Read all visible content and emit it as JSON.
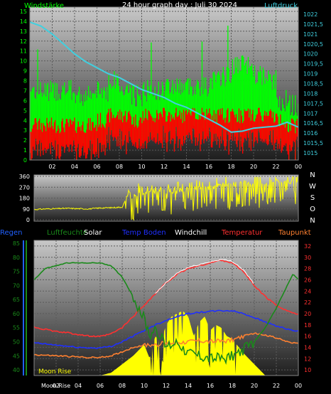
{
  "colors": {
    "wind_gust": "#00ff00",
    "wind_avg": "#ff0000",
    "pressure": "#40d0e0",
    "direction": "#ffff00",
    "rain": "#2060ff",
    "humidity": "#1a8a1a",
    "solar": "#ffff00",
    "soil_temp": "#1f2fff",
    "windchill": "#ffffff",
    "temperature": "#ff3030",
    "dewpoint": "#ff8030",
    "panel_top": "#bdbdbd",
    "panel_bottom": "#2a2a2a"
  },
  "chart_data": [
    {
      "type": "bar",
      "title": "24 hour graph day : Juli 30 2024",
      "left_axis_label": "Windstärke",
      "right_axis_label": "Luftdruck",
      "x_ticks": [
        "02",
        "04",
        "06",
        "08",
        "10",
        "12",
        "14",
        "16",
        "18",
        "20",
        "22",
        "00"
      ],
      "y_ticks_left": [
        "0",
        "1",
        "2",
        "3",
        "4",
        "5",
        "6",
        "7",
        "8",
        "9",
        "10",
        "11",
        "12",
        "13",
        "14",
        "15"
      ],
      "y_ticks_right": [
        "1015",
        "1015,5",
        "1016",
        "1016,5",
        "1017",
        "1017,5",
        "1018",
        "1018,5",
        "1019",
        "1019,5",
        "1020",
        "1020,5",
        "1021",
        "1021,5",
        "1022"
      ],
      "ylim_left": [
        0,
        15
      ],
      "ylim_right": [
        1015,
        1022
      ],
      "xlim_hours": [
        0,
        24
      ],
      "series": [
        {
          "key": "gust",
          "color": "wind_gust",
          "hourly": [
            7,
            7,
            7,
            7,
            6.5,
            6.5,
            7,
            8,
            7,
            6.5,
            7,
            7,
            7.5,
            7.5,
            7.5,
            7.5,
            8,
            8.5,
            9.5,
            9.5,
            8.5,
            8,
            6,
            5.5
          ]
        },
        {
          "key": "average",
          "color": "wind_avg",
          "hourly": [
            3.5,
            3.5,
            3.5,
            3.5,
            3.5,
            3.5,
            4,
            4.5,
            4.5,
            4,
            4.5,
            4.5,
            4.5,
            4.5,
            4.5,
            4.5,
            4.5,
            4.5,
            4.5,
            4.5,
            4.5,
            4.5,
            4,
            3.5
          ]
        },
        {
          "key": "pressure",
          "color": "pressure",
          "axis": "right",
          "x": [
            0,
            1,
            2,
            3,
            4,
            5,
            6,
            7,
            8,
            9,
            10,
            11,
            12,
            13,
            14,
            15,
            16,
            17,
            18,
            19,
            20,
            21,
            22,
            23,
            24
          ],
          "values": [
            1021.6,
            1021.4,
            1021.0,
            1020.5,
            1020.0,
            1019.6,
            1019.3,
            1019.0,
            1018.8,
            1018.5,
            1018.2,
            1018.0,
            1017.8,
            1017.5,
            1017.3,
            1017.0,
            1016.7,
            1016.4,
            1016.05,
            1016.1,
            1016.25,
            1016.3,
            1016.35,
            1016.55,
            1016.3
          ]
        }
      ]
    },
    {
      "type": "scatter",
      "ylim": [
        0,
        360
      ],
      "y_ticks": [
        "0",
        "90",
        "180",
        "270",
        "360"
      ],
      "compass_labels": [
        "N",
        "W",
        "S",
        "O",
        "N"
      ],
      "color": "direction",
      "x": [
        0,
        1,
        2,
        3,
        4,
        5,
        6,
        7,
        8,
        8.5,
        9,
        9.5,
        10,
        10.5,
        11,
        11.5,
        12,
        12.5,
        13,
        13.5,
        14,
        14.5,
        15,
        15.5,
        16,
        16.5,
        17,
        17.5,
        18,
        18.5,
        19,
        19.5,
        20,
        20.5,
        21,
        21.5,
        22,
        22.5,
        23,
        23.5,
        24
      ],
      "values": [
        85,
        90,
        92,
        95,
        92,
        90,
        98,
        100,
        105,
        200,
        150,
        240,
        210,
        250,
        230,
        260,
        235,
        240,
        230,
        255,
        250,
        260,
        255,
        270,
        265,
        275,
        290,
        300,
        285,
        300,
        310,
        300,
        295,
        305,
        300,
        310,
        315,
        320,
        310,
        320,
        300
      ]
    },
    {
      "type": "line",
      "legend": [
        "Regen",
        "Luftfeuchte",
        "Solar",
        "Temp Boden",
        "Windchill",
        "Temperatur",
        "Taupunkt"
      ],
      "x_ticks": [
        "02",
        "04",
        "06",
        "08",
        "10",
        "12",
        "14",
        "16",
        "18",
        "20",
        "22",
        "00"
      ],
      "y_ticks_left": [
        "40",
        "45",
        "50",
        "55",
        "60",
        "65",
        "70",
        "75",
        "80",
        "85"
      ],
      "y_ticks_right": [
        "10",
        "12",
        "14",
        "16",
        "18",
        "20",
        "22",
        "24",
        "26",
        "28",
        "30",
        "32"
      ],
      "ylim_left": [
        38,
        86
      ],
      "ylim_right": [
        9,
        33
      ],
      "xlim_hours": [
        0,
        24
      ],
      "annotations": [
        "Moon Rise",
        "Moon Rise"
      ],
      "moon_rise_hour": 1.2,
      "series": [
        {
          "key": "humidity",
          "color": "humidity",
          "axis": "left",
          "x": [
            0,
            0.5,
            1,
            2,
            3,
            4,
            5,
            6,
            7,
            8,
            9,
            10,
            10.5,
            11,
            12,
            13,
            14,
            15,
            16,
            17,
            18,
            19,
            20,
            21,
            22,
            23,
            23.5,
            24
          ],
          "values": [
            72,
            74,
            76,
            77,
            78,
            78,
            78,
            78,
            77,
            73,
            66,
            58,
            52,
            55,
            48,
            50,
            46,
            45,
            44,
            44,
            45,
            47,
            50,
            55,
            62,
            70,
            74,
            72
          ]
        },
        {
          "key": "temperature",
          "color": "temperature",
          "axis": "right",
          "x": [
            0,
            1,
            2,
            3,
            4,
            5,
            6,
            7,
            8,
            9,
            10,
            11,
            12,
            13,
            14,
            15,
            16,
            17,
            18,
            19,
            20,
            21,
            22,
            23,
            24
          ],
          "values": [
            17.6,
            17.2,
            16.8,
            16.6,
            16.3,
            16.0,
            15.9,
            16.4,
            17.5,
            19.5,
            21.5,
            23.5,
            25.5,
            27.0,
            28.0,
            28.5,
            29.0,
            29.5,
            29.0,
            27.5,
            25.0,
            23.0,
            21.5,
            20.5,
            19.8
          ]
        },
        {
          "key": "windchill",
          "color": "windchill",
          "axis": "right",
          "x": [
            11,
            12,
            13,
            14,
            15,
            16,
            17,
            18,
            19,
            20
          ],
          "values": [
            23.5,
            25.5,
            27.2,
            28.2,
            28.7,
            29.2,
            29.6,
            29.3,
            27.8,
            25.2
          ]
        },
        {
          "key": "soil_temp",
          "color": "soil_temp",
          "axis": "right",
          "x": [
            0,
            1,
            2,
            3,
            4,
            5,
            6,
            7,
            8,
            9,
            10,
            11,
            12,
            13,
            14,
            15,
            16,
            17,
            18,
            19,
            20,
            21,
            22,
            23,
            24
          ],
          "values": [
            14.8,
            14.6,
            14.4,
            14.2,
            14.0,
            13.9,
            13.9,
            14.2,
            15.0,
            16.0,
            17.0,
            18.0,
            18.8,
            19.5,
            20.0,
            20.2,
            20.4,
            20.5,
            20.5,
            20.0,
            19.3,
            18.5,
            17.8,
            17.2,
            16.8
          ]
        },
        {
          "key": "dewpoint",
          "color": "dewpoint",
          "axis": "right",
          "x": [
            0,
            1,
            2,
            3,
            4,
            5,
            6,
            7,
            8,
            9,
            10,
            11,
            12,
            13,
            14,
            15,
            16,
            17,
            18,
            19,
            20,
            21,
            22,
            23,
            24
          ],
          "values": [
            12.7,
            12.6,
            12.5,
            12.4,
            12.3,
            12.2,
            12.2,
            12.5,
            13.2,
            14.0,
            14.4,
            14.5,
            14.7,
            14.9,
            15.0,
            15.2,
            15.0,
            15.1,
            15.3,
            16.0,
            16.5,
            16.2,
            15.7,
            15.0,
            14.6
          ]
        },
        {
          "key": "solar",
          "color": "solar",
          "axis": "right",
          "kind": "area",
          "x": [
            6,
            7,
            8,
            9,
            10,
            10.5,
            11,
            11.5,
            12,
            12.5,
            13,
            13.5,
            14,
            14.5,
            15,
            15.5,
            16,
            16.5,
            17,
            17.5,
            18,
            19,
            20,
            21
          ],
          "values": [
            9,
            9.5,
            11,
            12.5,
            14.5,
            12,
            16,
            15,
            18,
            19.5,
            20,
            20.5,
            19.5,
            16,
            18.5,
            19.5,
            17,
            18,
            17.5,
            16,
            15.5,
            13,
            11,
            9
          ]
        }
      ]
    }
  ]
}
